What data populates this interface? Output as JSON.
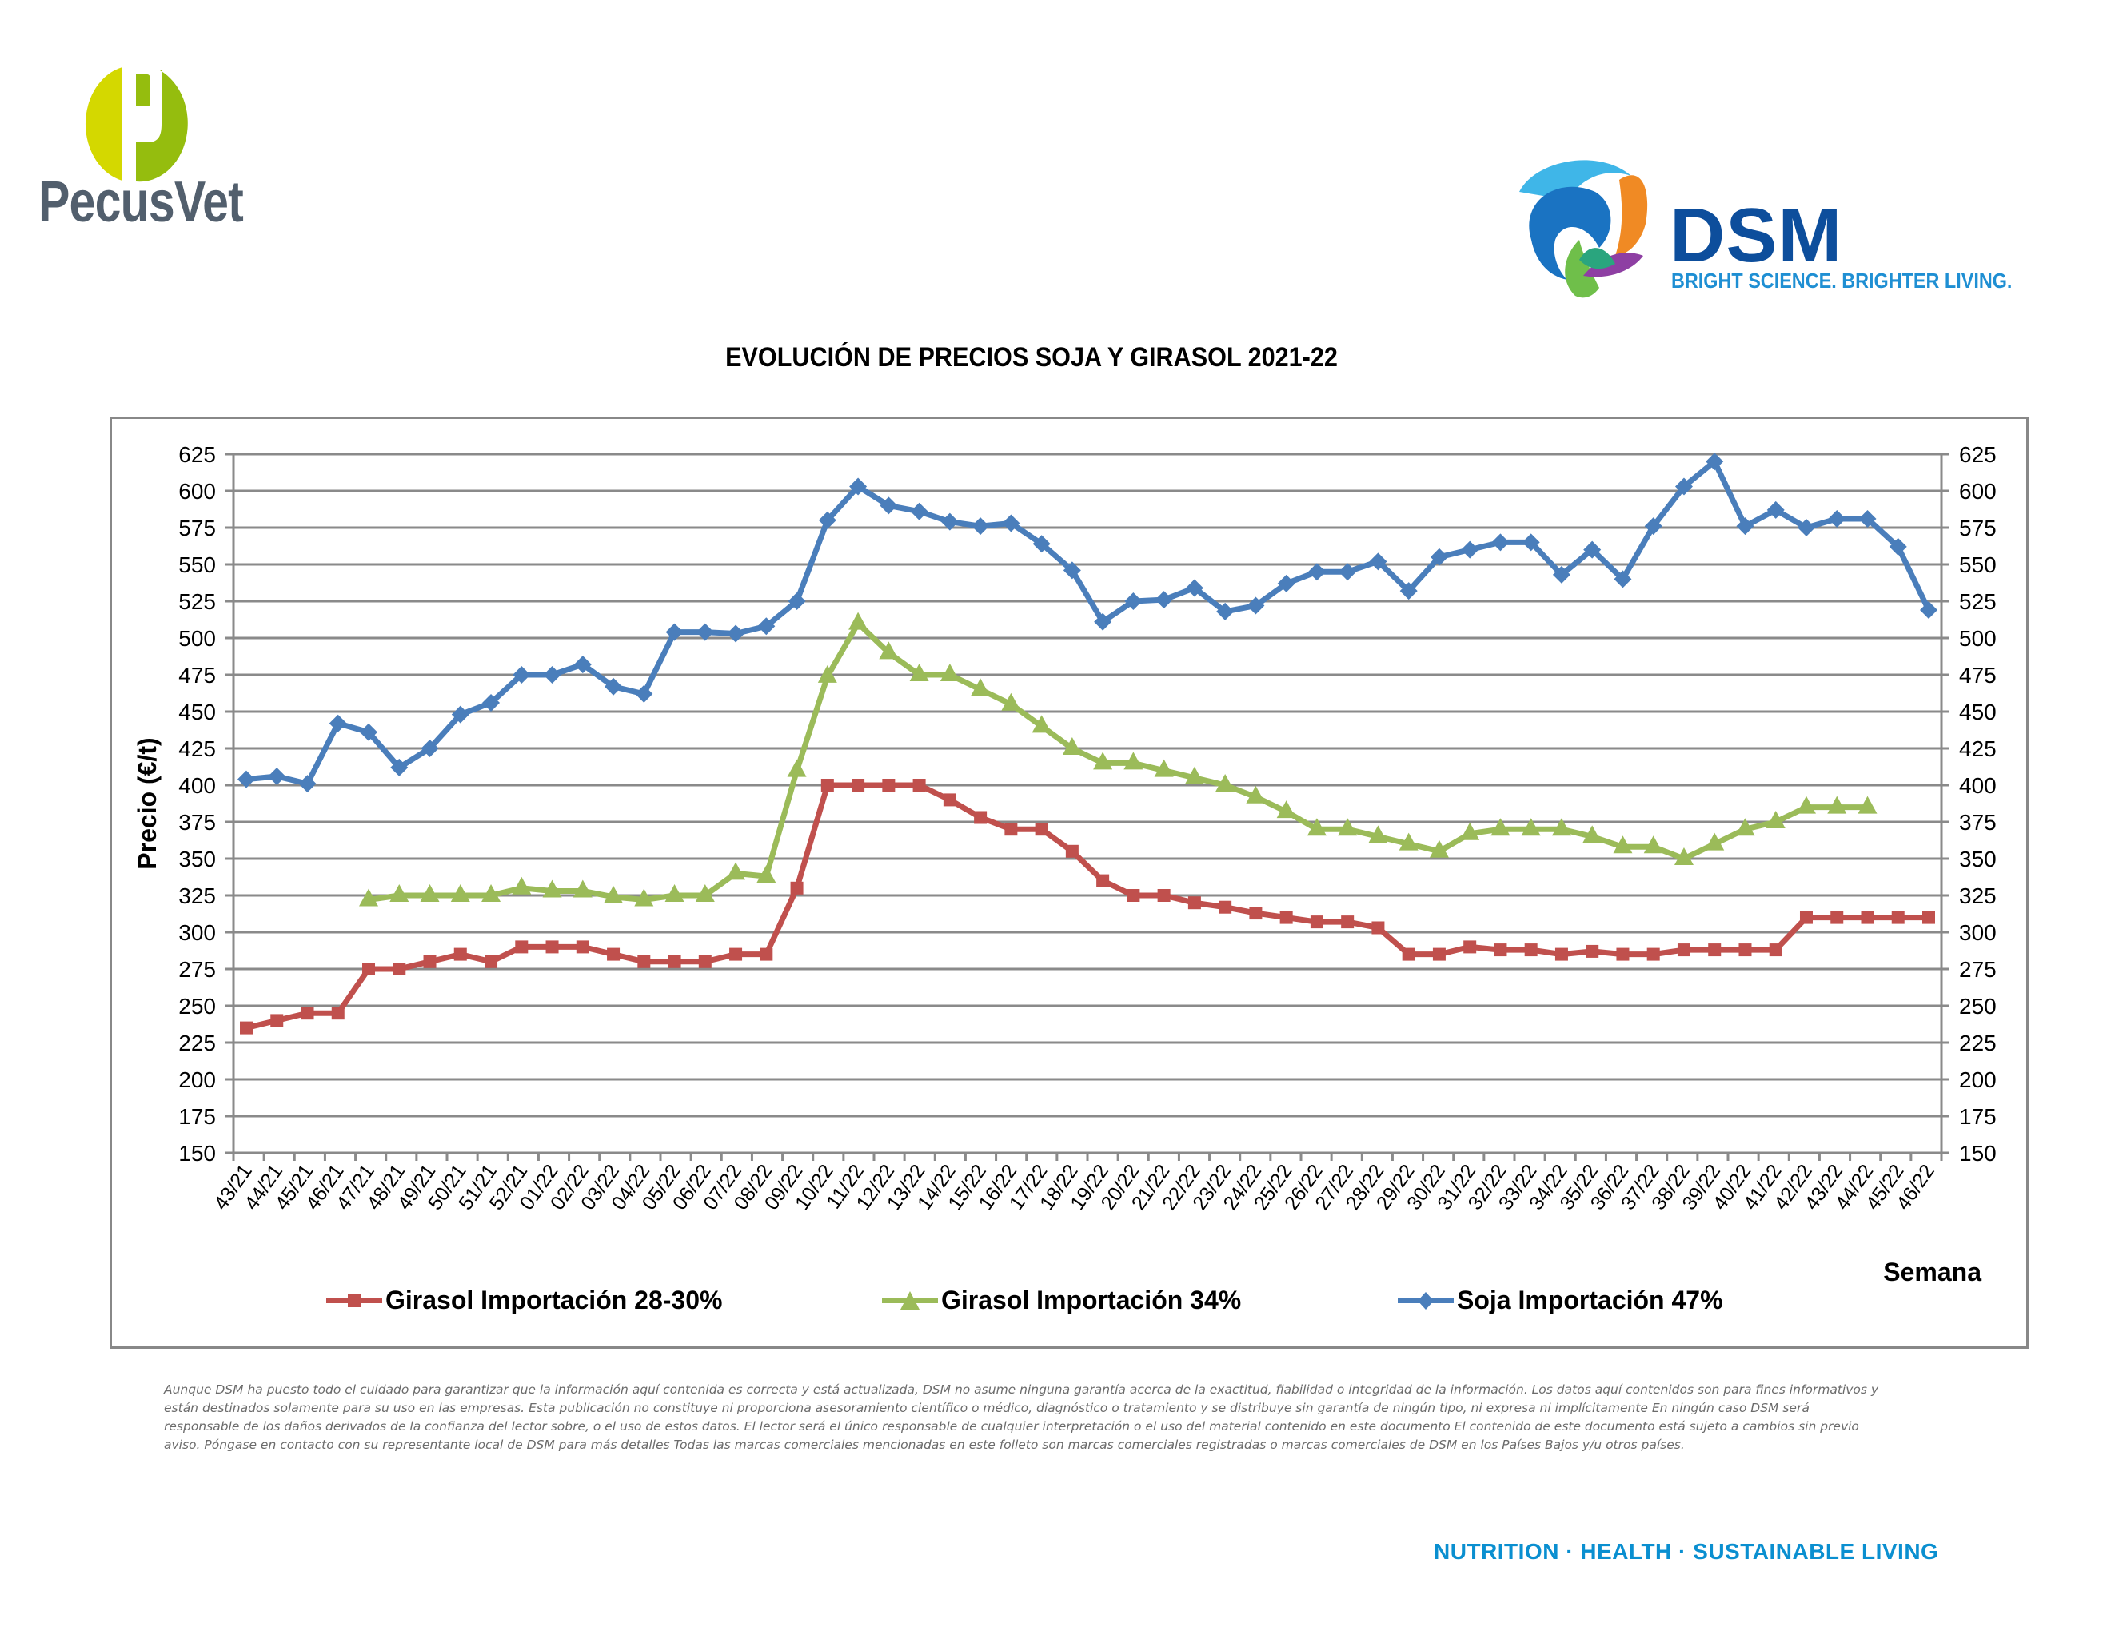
{
  "header": {
    "left_logo": {
      "name": "PecusVet",
      "colors": {
        "light": "#d4d800",
        "dark": "#95bd0e",
        "text": "#525f6d"
      }
    },
    "right_logo": {
      "name": "DSM",
      "tagline": "BRIGHT SCIENCE. BRIGHTER LIVING.",
      "colors": {
        "text": "#0d4e9c",
        "tagline": "#1f8fd3"
      }
    }
  },
  "footer": {
    "disclaimer": "Aunque DSM ha puesto todo el cuidado para garantizar que la información aquí contenida es correcta y está actualizada, DSM no asume ninguna garantía acerca de la exactitud, fiabilidad o integridad de la información. Los datos aquí contenidos son para fines informativos y están destinados solamente para su uso en las empresas. Esta publicación no constituye ni proporciona asesoramiento científico o médico, diagnóstico o tratamiento y se distribuye sin garantía de ningún tipo, ni expresa ni implícitamente En ningún caso DSM será responsable de los daños derivados de la confianza del lector sobre, o el uso de estos datos. El lector será el único responsable de cualquier interpretación o el uso del material contenido en este documento El contenido de este documento está sujeto a cambios sin previo aviso. Póngase en contacto con su representante local de DSM para más detalles Todas las marcas comerciales mencionadas en este folleto son marcas comerciales registradas o marcas comerciales de DSM en los Países Bajos y/u otros países.",
    "tagline": "NUTRITION  ·  HEALTH  ·  SUSTAINABLE LIVING"
  },
  "chart_data": {
    "type": "line",
    "title": "EVOLUCIÓN DE PRECIOS SOJA Y GIRASOL 2021-22",
    "xlabel": "Semana",
    "ylabel": "Precio (€/t)",
    "ylim": [
      150,
      625
    ],
    "yticks": [
      150,
      175,
      200,
      225,
      250,
      275,
      300,
      325,
      350,
      375,
      400,
      425,
      450,
      475,
      500,
      525,
      550,
      575,
      600,
      625
    ],
    "secondary_y_axis": true,
    "grid": "horizontal",
    "legend_position": "bottom",
    "categories": [
      "43/21",
      "44/21",
      "45/21",
      "46/21",
      "47/21",
      "48/21",
      "49/21",
      "50/21",
      "51/21",
      "52/21",
      "01/22",
      "02/22",
      "03/22",
      "04/22",
      "05/22",
      "06/22",
      "07/22",
      "08/22",
      "09/22",
      "10/22",
      "11/22",
      "12/22",
      "13/22",
      "14/22",
      "15/22",
      "16/22",
      "17/22",
      "18/22",
      "19/22",
      "20/22",
      "21/22",
      "22/22",
      "23/22",
      "24/22",
      "25/22",
      "26/22",
      "27/22",
      "28/22",
      "29/22",
      "30/22",
      "31/22",
      "32/22",
      "33/22",
      "34/22",
      "35/22",
      "36/22",
      "37/22",
      "38/22",
      "39/22",
      "40/22",
      "41/22",
      "42/22",
      "43/22",
      "44/22",
      "45/22",
      "46/22"
    ],
    "series": [
      {
        "name": "Girasol Importación 28-30%",
        "color": "#c0504d",
        "marker": "square",
        "values": [
          235,
          240,
          245,
          245,
          275,
          275,
          280,
          285,
          280,
          290,
          290,
          290,
          285,
          280,
          280,
          280,
          285,
          285,
          330,
          400,
          400,
          400,
          400,
          390,
          378,
          370,
          370,
          355,
          335,
          325,
          325,
          320,
          317,
          313,
          310,
          307,
          307,
          303,
          285,
          285,
          290,
          288,
          288,
          285,
          287,
          285,
          285,
          288,
          288,
          288,
          288,
          310,
          310,
          310,
          310,
          310
        ]
      },
      {
        "name": "Girasol Importación 34%",
        "color": "#9bbb59",
        "marker": "triangle",
        "values": [
          null,
          null,
          null,
          null,
          322,
          325,
          325,
          325,
          325,
          330,
          328,
          328,
          324,
          322,
          325,
          325,
          340,
          338,
          410,
          474,
          510,
          490,
          475,
          475,
          465,
          455,
          440,
          425,
          415,
          415,
          410,
          405,
          400,
          392,
          382,
          370,
          370,
          365,
          360,
          355,
          367,
          370,
          370,
          370,
          365,
          358,
          358,
          350,
          360,
          370,
          375,
          385,
          385,
          385,
          null,
          null
        ]
      },
      {
        "name": "Soja Importación 47%",
        "color": "#4a7ebb",
        "marker": "diamond",
        "values": [
          404,
          406,
          401,
          442,
          436,
          412,
          425,
          448,
          456,
          475,
          475,
          482,
          467,
          462,
          504,
          504,
          503,
          508,
          525,
          580,
          603,
          590,
          586,
          579,
          576,
          578,
          564,
          546,
          511,
          525,
          526,
          534,
          518,
          522,
          537,
          545,
          545,
          552,
          532,
          555,
          560,
          565,
          565,
          543,
          560,
          540,
          576,
          603,
          620,
          576,
          587,
          575,
          581,
          581,
          562,
          519
        ]
      }
    ]
  }
}
